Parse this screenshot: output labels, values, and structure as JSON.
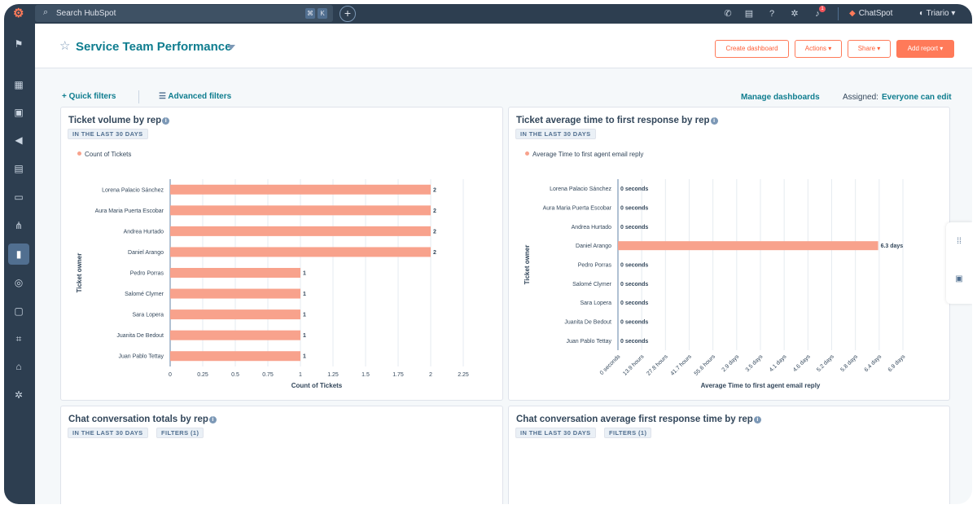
{
  "topnav": {
    "search_placeholder": "Search HubSpot",
    "search_kbd": [
      "⌘",
      "K"
    ],
    "chatspot_label": "ChatSpot",
    "account_label": "Triario",
    "notification_count": "1",
    "icons": [
      "phone-icon",
      "store-icon",
      "help-icon",
      "settings-icon",
      "bell-icon"
    ]
  },
  "sidebar": {
    "icons": [
      "bookmark-icon",
      "workspaces-icon",
      "contacts-icon",
      "marketing-icon",
      "content-icon",
      "commerce-icon",
      "automations-icon",
      "reporting-icon",
      "data-management-icon",
      "library-icon",
      "development-icon",
      "marketplace-icon",
      "settings-icon"
    ],
    "active_index": 7
  },
  "header": {
    "title": "Service Team Performance",
    "buttons": {
      "create_dashboard": "Create dashboard",
      "actions": "Actions ▾",
      "share": "Share ▾",
      "add_report": "Add report ▾"
    }
  },
  "filters": {
    "quick_filters": "Quick filters",
    "advanced_filters": "Advanced filters",
    "manage_dashboards": "Manage dashboards",
    "assigned_label": "Assigned:",
    "assigned_value": "Everyone can edit"
  },
  "cards": [
    {
      "title": "Ticket volume by rep",
      "tags": [
        "IN THE LAST 30 DAYS"
      ]
    },
    {
      "title": "Ticket average time to first response by rep",
      "tags": [
        "IN THE LAST 30 DAYS"
      ]
    },
    {
      "title": "Chat conversation totals by rep",
      "tags": [
        "IN THE LAST 30 DAYS",
        "FILTERS (1)"
      ]
    },
    {
      "title": "Chat conversation average first response time by rep",
      "tags": [
        "IN THE LAST 30 DAYS",
        "FILTERS (1)"
      ]
    }
  ],
  "chart_data": [
    {
      "type": "bar",
      "orientation": "horizontal",
      "categories": [
        "Lorena Palacio Sánchez",
        "Aura Maria Puerta Escobar",
        "Andrea Hurtado",
        "Daniel Arango",
        "Pedro Porras",
        "Salomé Clymer",
        "Sara Lopera",
        "Juanita De Bedout",
        "Juan Pablo Tettay"
      ],
      "series": [
        {
          "name": "Count of Tickets",
          "values": [
            2,
            2,
            2,
            2,
            1,
            1,
            1,
            1,
            1
          ],
          "labels": [
            "2",
            "2",
            "2",
            "2",
            "1",
            "1",
            "1",
            "1",
            "1"
          ]
        }
      ],
      "xlabel": "Count of Tickets",
      "ylabel": "Ticket owner",
      "xlim": [
        0,
        2.25
      ],
      "xticks": [
        "0",
        "0.25",
        "0.5",
        "0.75",
        "1",
        "1.25",
        "1.5",
        "1.75",
        "2",
        "2.25"
      ],
      "grid": true,
      "legend": "top-left",
      "color": "#f8a28c"
    },
    {
      "type": "bar",
      "orientation": "horizontal",
      "categories": [
        "Lorena Palacio Sánchez",
        "Aura Maria Puerta Escobar",
        "Andrea Hurtado",
        "Daniel Arango",
        "Pedro Porras",
        "Salomé Clymer",
        "Sara Lopera",
        "Juanita De Bedout",
        "Juan Pablo Tettay"
      ],
      "series": [
        {
          "name": "Average Time to first agent email reply",
          "values": [
            0,
            0,
            0,
            6.3,
            0,
            0,
            0,
            0,
            0
          ],
          "unit": "days",
          "labels": [
            "0 seconds",
            "0 seconds",
            "0 seconds",
            "6.3 days",
            "0 seconds",
            "0 seconds",
            "0 seconds",
            "0 seconds",
            "0 seconds"
          ]
        }
      ],
      "xlabel": "Average Time to first agent email reply",
      "ylabel": "Ticket owner",
      "xlim": [
        0,
        6.9
      ],
      "xticks": [
        "0 seconds",
        "13.9 hours",
        "27.8 hours",
        "41.7 hours",
        "55.6 hours",
        "2.9 days",
        "3.5 days",
        "4.1 days",
        "4.6 days",
        "5.2 days",
        "5.8 days",
        "6.4 days",
        "6.9 days"
      ],
      "grid": true,
      "legend": "top-left",
      "color": "#f8a28c"
    }
  ]
}
